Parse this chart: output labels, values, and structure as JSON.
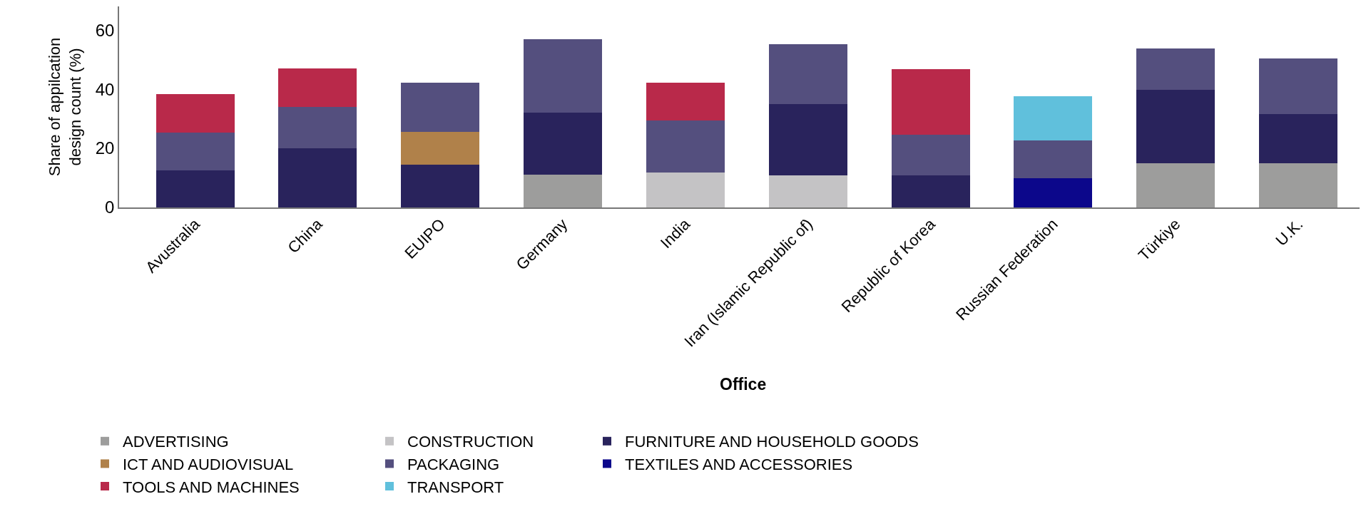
{
  "chart_data": {
    "type": "bar",
    "stacked": true,
    "xlabel": "Office",
    "ylabel": "Share of appilcation\ndesign count (%)",
    "categories": [
      "Avustralia",
      "China",
      "EUIPO",
      "Germany",
      "India",
      "Iran (Islamic Republic of)",
      "Republic of Korea",
      "Russian Federation",
      "Türkiye",
      "U.K."
    ],
    "series": [
      {
        "name": "ADVERTISING",
        "color": "#9d9d9c",
        "values": [
          null,
          null,
          null,
          11.2,
          null,
          null,
          null,
          null,
          15.0,
          15.0
        ]
      },
      {
        "name": "CONSTRUCTION",
        "color": "#c4c3c5",
        "values": [
          null,
          null,
          null,
          null,
          11.9,
          10.9,
          null,
          null,
          null,
          null
        ]
      },
      {
        "name": "FURNITURE AND HOUSEHOLD GOODS",
        "color": "#29235c",
        "values": [
          12.6,
          20.1,
          14.5,
          20.8,
          null,
          24.0,
          10.9,
          null,
          24.9,
          16.6
        ]
      },
      {
        "name": "TEXTILES AND ACCESSORIES",
        "color": "#0c078b",
        "values": [
          null,
          null,
          null,
          null,
          null,
          null,
          null,
          10.0,
          null,
          null
        ]
      },
      {
        "name": "ICT AND AUDIOVISUAL",
        "color": "#b0814a",
        "values": [
          null,
          null,
          11.1,
          null,
          null,
          null,
          null,
          null,
          null,
          null
        ]
      },
      {
        "name": "PACKAGING",
        "color": "#544f7e",
        "values": [
          12.8,
          13.8,
          16.6,
          24.8,
          17.4,
          20.4,
          13.8,
          12.7,
          13.9,
          18.8
        ]
      },
      {
        "name": "TOOLS AND MACHINES",
        "color": "#b9294a",
        "values": [
          13.0,
          13.1,
          null,
          null,
          13.0,
          null,
          22.2,
          null,
          null,
          null
        ]
      },
      {
        "name": "TRANSPORT",
        "color": "#60c0dc",
        "values": [
          null,
          null,
          null,
          null,
          null,
          null,
          null,
          15.0,
          null,
          null
        ]
      }
    ],
    "ylim": [
      0,
      68
    ],
    "yticks": [
      0,
      20,
      40,
      60
    ],
    "grid": false,
    "legend": "bottom left"
  }
}
